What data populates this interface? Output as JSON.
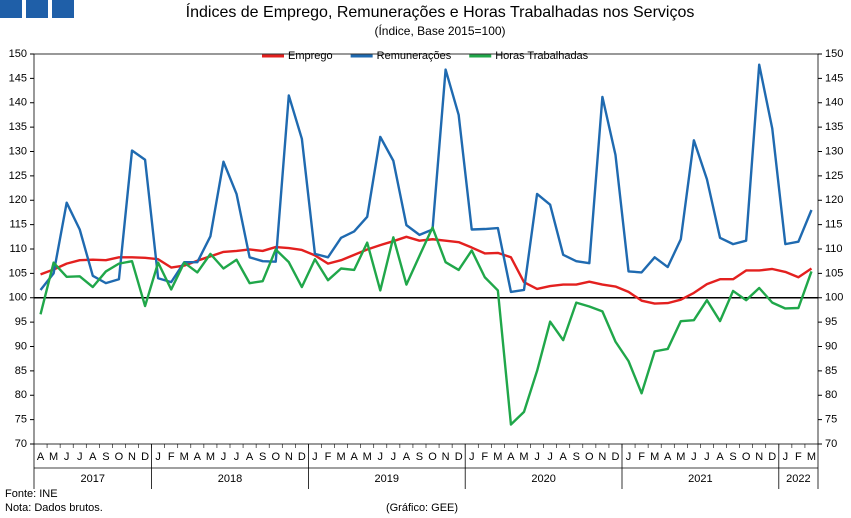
{
  "chart_data": {
    "type": "line",
    "title": "Índices de Emprego, Remunerações e Horas Trabalhadas nos Serviços",
    "subtitle": "(Índice, Base 2015=100)",
    "source": "Fonte: INE",
    "note": "Nota: Dados brutos.",
    "credit": "(Gráfico: GEE)",
    "categories": [
      "A",
      "M",
      "J",
      "J",
      "A",
      "S",
      "O",
      "N",
      "D",
      "J",
      "F",
      "M",
      "A",
      "M",
      "J",
      "J",
      "A",
      "S",
      "O",
      "N",
      "D",
      "J",
      "F",
      "M",
      "A",
      "M",
      "J",
      "J",
      "A",
      "S",
      "O",
      "N",
      "D",
      "J",
      "F",
      "M",
      "A",
      "M",
      "J",
      "J",
      "A",
      "S",
      "O",
      "N",
      "D",
      "J",
      "F",
      "M",
      "A",
      "M",
      "J",
      "J",
      "A",
      "S",
      "O",
      "N",
      "D",
      "J",
      "F",
      "M"
    ],
    "years": [
      "2017",
      "2018",
      "2019",
      "2020",
      "2021",
      "2022"
    ],
    "ylim": [
      70,
      150
    ],
    "yticks": [
      70,
      75,
      80,
      85,
      90,
      95,
      100,
      105,
      110,
      115,
      120,
      125,
      130,
      135,
      140,
      145,
      150
    ],
    "y2lim": [
      70,
      150
    ],
    "y2ticks": [
      70,
      75,
      80,
      85,
      90,
      95,
      100,
      105,
      110,
      115,
      120,
      125,
      130,
      135,
      140,
      145,
      150
    ],
    "reference_line": 100,
    "legend": "top",
    "series": [
      {
        "name": "Emprego",
        "color": "#e3201f",
        "values": [
          104.8,
          105.8,
          107,
          107.7,
          107.8,
          107.7,
          108.3,
          108.3,
          108.2,
          107.9,
          106.2,
          106.6,
          107.6,
          108.5,
          109.4,
          109.6,
          109.9,
          109.6,
          110.4,
          110.2,
          109.8,
          108.7,
          107,
          107.7,
          108.8,
          109.9,
          110.8,
          111.6,
          112.5,
          111.7,
          112,
          111.7,
          111.4,
          110.3,
          109.1,
          109.2,
          108.3,
          103.2,
          101.8,
          102.4,
          102.7,
          102.7,
          103.3,
          102.7,
          102.3,
          101.2,
          99.4,
          98.8,
          98.9,
          99.6,
          101,
          102.8,
          103.8,
          103.8,
          105.6,
          105.6,
          105.9,
          105.3,
          104.2,
          106
        ]
      },
      {
        "name": "Remunerações",
        "color": "#1f6ab0",
        "values": [
          101.6,
          105,
          119.5,
          114,
          104.5,
          103,
          103.8,
          130.2,
          128.3,
          104,
          103.2,
          107.3,
          107.3,
          112.6,
          127.9,
          121.3,
          108.3,
          107.5,
          107.4,
          141.5,
          132.6,
          109,
          108.3,
          112.3,
          113.6,
          116.6,
          133,
          128.1,
          114.9,
          112.9,
          114,
          146.8,
          137.5,
          114,
          114.1,
          114.3,
          101.2,
          101.6,
          121.3,
          119.1,
          108.8,
          107.5,
          107.1,
          141.2,
          129.3,
          105.4,
          105.2,
          108.3,
          106.3,
          112,
          132.3,
          124.3,
          112.3,
          111,
          111.7,
          147.8,
          134.7,
          111,
          111.5,
          118
        ]
      },
      {
        "name": "Horas Trabalhadas",
        "color": "#20a74a",
        "values": [
          96.6,
          107.2,
          104.3,
          104.4,
          102.2,
          105.4,
          107,
          107.5,
          98.3,
          107.2,
          101.7,
          107.2,
          105.2,
          109,
          106,
          107.8,
          103,
          103.4,
          109.9,
          107.3,
          102.2,
          107.9,
          103.6,
          106,
          105.7,
          111.3,
          101.5,
          112.4,
          102.7,
          108.6,
          114.4,
          107.3,
          105.7,
          109.7,
          104.2,
          101.5,
          74,
          76.6,
          85,
          95.1,
          91.3,
          99,
          98.2,
          97.2,
          91,
          87,
          80.4,
          89,
          89.5,
          95.2,
          95.4,
          99.5,
          95.2,
          101.4,
          99.5,
          102,
          99,
          97.8,
          97.9,
          105.4
        ]
      }
    ]
  }
}
